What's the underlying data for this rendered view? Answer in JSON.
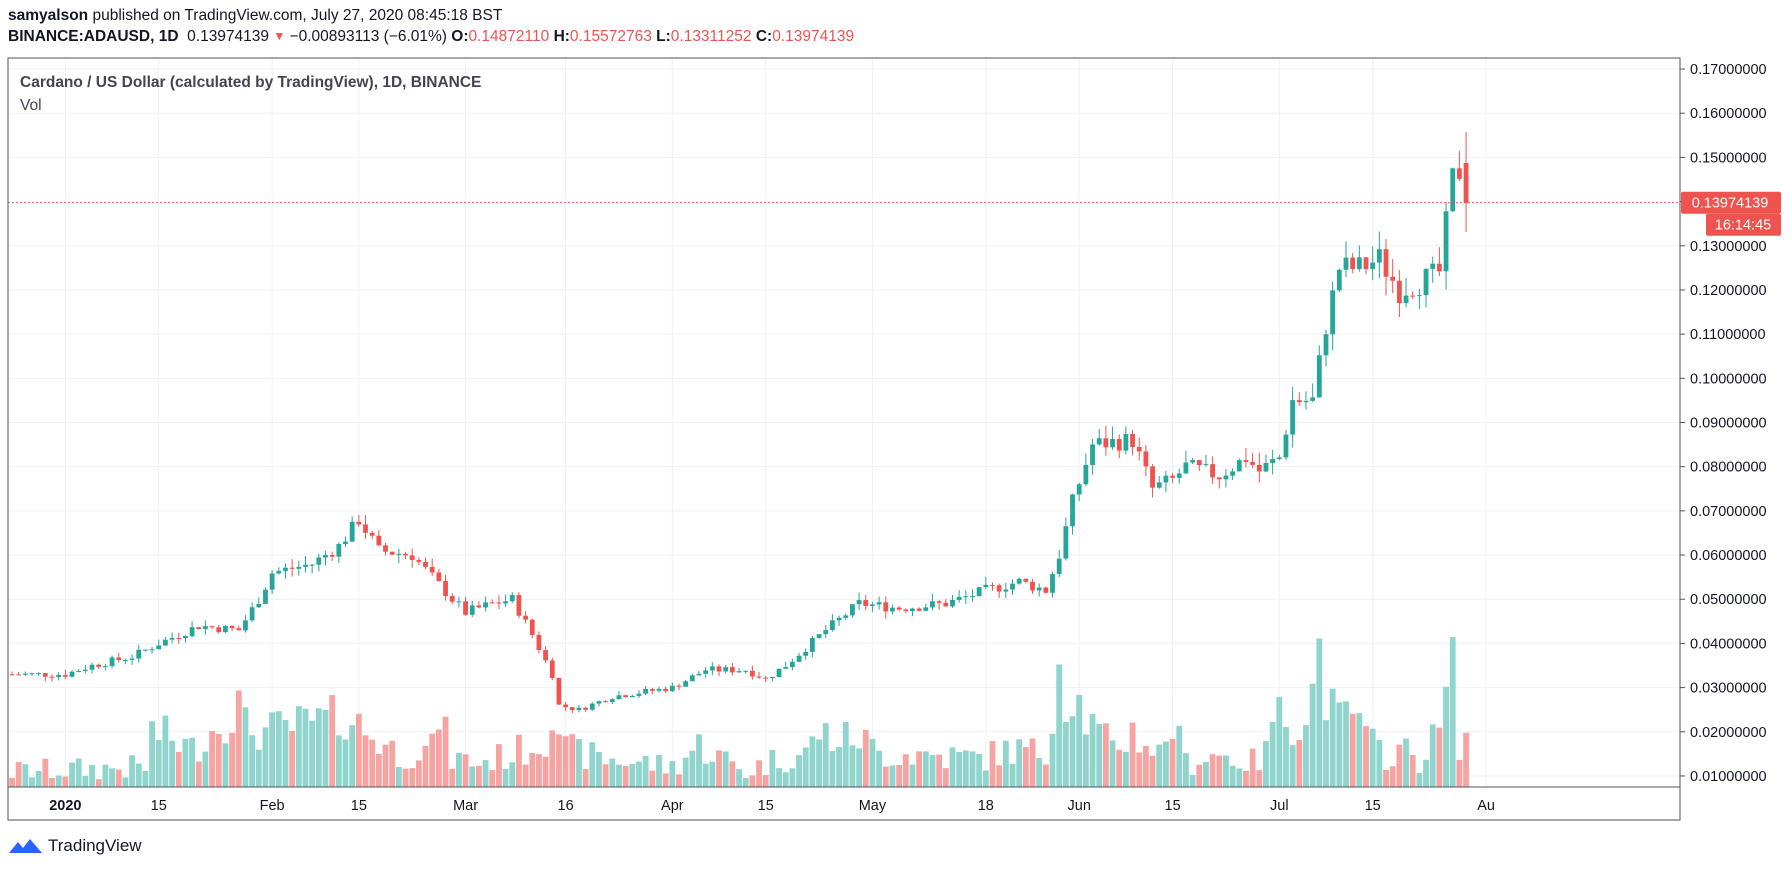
{
  "header": {
    "author": "samyalson",
    "published": "published on TradingView.com, July 27, 2020 08:45:18 BST",
    "symbol": "BINANCE:ADAUSD, 1D",
    "last": "0.13974139",
    "change": "−0.00893113 (−6.01%)",
    "o_label": "O:",
    "o": "0.14872110",
    "h_label": "H:",
    "h": "0.15572763",
    "l_label": "L:",
    "l": "0.13311252",
    "c_label": "C:",
    "c": "0.13974139"
  },
  "legend": {
    "title": "Cardano / US Dollar (calculated by TradingView), 1D, BINANCE",
    "vol": "Vol"
  },
  "price_tag": "0.13974139",
  "countdown": "16:14:45",
  "footer": {
    "brand": "TradingView"
  },
  "colors": {
    "up": "#26a69a",
    "down": "#ef5350",
    "vol_up": "#8fd4cd",
    "vol_down": "#f5a4a2",
    "grid": "#eef1f6"
  },
  "chart_data": {
    "type": "candlestick",
    "title": "Cardano / US Dollar (calculated by TradingView), 1D, BINANCE",
    "ylim": [
      0.0075,
      0.1725
    ],
    "y_ticks": [
      "0.01000000",
      "0.02000000",
      "0.03000000",
      "0.04000000",
      "0.05000000",
      "0.06000000",
      "0.07000000",
      "0.08000000",
      "0.09000000",
      "0.10000000",
      "0.11000000",
      "0.12000000",
      "0.13000000",
      "0.14000000",
      "0.15000000",
      "0.16000000",
      "0.17000000"
    ],
    "x_ticks": [
      {
        "i": 8,
        "label": "2020",
        "bold": true
      },
      {
        "i": 22,
        "label": "15"
      },
      {
        "i": 39,
        "label": "Feb"
      },
      {
        "i": 52,
        "label": "15"
      },
      {
        "i": 68,
        "label": "Mar"
      },
      {
        "i": 83,
        "label": "16"
      },
      {
        "i": 99,
        "label": "Apr"
      },
      {
        "i": 113,
        "label": "15"
      },
      {
        "i": 129,
        "label": "May"
      },
      {
        "i": 146,
        "label": "18"
      },
      {
        "i": 160,
        "label": "Jun"
      },
      {
        "i": 174,
        "label": "15"
      },
      {
        "i": 190,
        "label": "Jul"
      },
      {
        "i": 204,
        "label": "15"
      },
      {
        "i": 221,
        "label": "Au"
      }
    ],
    "anchors": [
      [
        0,
        0.033
      ],
      [
        8,
        0.033
      ],
      [
        12,
        0.035
      ],
      [
        18,
        0.037
      ],
      [
        22,
        0.04
      ],
      [
        28,
        0.044
      ],
      [
        34,
        0.043
      ],
      [
        37,
        0.05
      ],
      [
        39,
        0.056
      ],
      [
        45,
        0.058
      ],
      [
        49,
        0.062
      ],
      [
        52,
        0.068
      ],
      [
        55,
        0.061
      ],
      [
        60,
        0.06
      ],
      [
        63,
        0.055
      ],
      [
        66,
        0.05
      ],
      [
        68,
        0.047
      ],
      [
        72,
        0.049
      ],
      [
        75,
        0.05
      ],
      [
        78,
        0.042
      ],
      [
        81,
        0.033
      ],
      [
        82,
        0.026
      ],
      [
        85,
        0.025
      ],
      [
        90,
        0.028
      ],
      [
        99,
        0.03
      ],
      [
        104,
        0.034
      ],
      [
        110,
        0.034
      ],
      [
        113,
        0.032
      ],
      [
        116,
        0.035
      ],
      [
        122,
        0.043
      ],
      [
        127,
        0.049
      ],
      [
        133,
        0.048
      ],
      [
        140,
        0.049
      ],
      [
        146,
        0.052
      ],
      [
        151,
        0.054
      ],
      [
        155,
        0.052
      ],
      [
        157,
        0.06
      ],
      [
        159,
        0.072
      ],
      [
        162,
        0.085
      ],
      [
        168,
        0.086
      ],
      [
        171,
        0.075
      ],
      [
        174,
        0.077
      ],
      [
        176,
        0.08
      ],
      [
        181,
        0.078
      ],
      [
        185,
        0.082
      ],
      [
        187,
        0.079
      ],
      [
        190,
        0.082
      ],
      [
        192,
        0.095
      ],
      [
        195,
        0.095
      ],
      [
        197,
        0.112
      ],
      [
        199,
        0.125
      ],
      [
        202,
        0.125
      ],
      [
        205,
        0.127
      ],
      [
        208,
        0.12
      ],
      [
        213,
        0.123
      ],
      [
        214,
        0.124
      ],
      [
        216,
        0.145
      ],
      [
        217,
        0.147
      ],
      [
        218,
        0.1397
      ]
    ],
    "volume": [
      [
        0,
        0.011
      ],
      [
        20,
        0.012
      ],
      [
        21,
        0.02
      ],
      [
        23,
        0.019
      ],
      [
        27,
        0.016
      ],
      [
        34,
        0.026
      ],
      [
        35,
        0.021
      ],
      [
        38,
        0.02
      ],
      [
        49,
        0.023
      ],
      [
        50,
        0.024
      ],
      [
        54,
        0.019
      ],
      [
        58,
        0.015
      ],
      [
        63,
        0.016
      ],
      [
        64,
        0.024
      ],
      [
        66,
        0.014
      ],
      [
        70,
        0.013
      ],
      [
        75,
        0.015
      ],
      [
        80,
        0.018
      ],
      [
        81,
        0.027
      ],
      [
        83,
        0.016
      ],
      [
        88,
        0.014
      ],
      [
        95,
        0.013
      ],
      [
        99,
        0.012
      ],
      [
        103,
        0.017
      ],
      [
        110,
        0.011
      ],
      [
        115,
        0.014
      ],
      [
        119,
        0.015
      ],
      [
        121,
        0.02
      ],
      [
        124,
        0.018
      ],
      [
        127,
        0.019
      ],
      [
        130,
        0.015
      ],
      [
        135,
        0.015
      ],
      [
        145,
        0.014
      ],
      [
        150,
        0.016
      ],
      [
        155,
        0.015
      ],
      [
        156,
        0.026
      ],
      [
        157,
        0.037
      ],
      [
        158,
        0.027
      ],
      [
        159,
        0.03
      ],
      [
        161,
        0.023
      ],
      [
        165,
        0.016
      ],
      [
        168,
        0.02
      ],
      [
        172,
        0.015
      ],
      [
        174,
        0.022
      ],
      [
        176,
        0.013
      ],
      [
        180,
        0.015
      ],
      [
        186,
        0.013
      ],
      [
        188,
        0.015
      ],
      [
        189,
        0.024
      ],
      [
        193,
        0.022
      ],
      [
        195,
        0.029
      ],
      [
        196,
        0.039
      ],
      [
        197,
        0.028
      ],
      [
        199,
        0.022
      ],
      [
        201,
        0.025
      ],
      [
        203,
        0.018
      ],
      [
        206,
        0.015
      ],
      [
        208,
        0.016
      ],
      [
        211,
        0.014
      ],
      [
        214,
        0.02
      ],
      [
        215,
        0.029
      ],
      [
        216,
        0.034
      ],
      [
        217,
        0.018
      ]
    ]
  }
}
